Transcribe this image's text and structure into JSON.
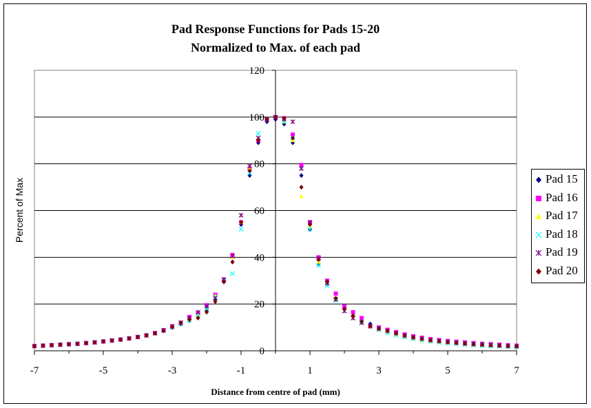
{
  "chart_data": {
    "type": "scatter",
    "title": "Pad Response Functions for Pads 15-20",
    "subtitle": "Normalized to Max. of each pad",
    "xlabel": "Distance from centre of pad (mm)",
    "ylabel": "Percent of Max",
    "xlim": [
      -7,
      7
    ],
    "ylim": [
      0,
      120
    ],
    "xticks": [
      "-7",
      "-5",
      "-3",
      "-1",
      "1",
      "3",
      "5",
      "7"
    ],
    "yticks": [
      "0",
      "20",
      "40",
      "60",
      "80",
      "100",
      "120"
    ],
    "grid": "horizontal",
    "legend_position": "right",
    "x": [
      -7,
      -6.75,
      -6.5,
      -6.25,
      -6,
      -5.75,
      -5.5,
      -5.25,
      -5,
      -4.75,
      -4.5,
      -4.25,
      -4,
      -3.75,
      -3.5,
      -3.25,
      -3,
      -2.75,
      -2.5,
      -2.25,
      -2,
      -1.75,
      -1.5,
      -1.25,
      -1,
      -0.75,
      -0.5,
      -0.25,
      0,
      0.25,
      0.5,
      0.75,
      1,
      1.25,
      1.5,
      1.75,
      2,
      2.25,
      2.5,
      2.75,
      3,
      3.25,
      3.5,
      3.75,
      4,
      4.25,
      4.5,
      4.75,
      5,
      5.25,
      5.5,
      5.75,
      6,
      6.25,
      6.5,
      6.75,
      7
    ],
    "series": [
      {
        "name": "Pad 15",
        "color": "#000080",
        "marker": "diamond",
        "values": [
          2,
          2.2,
          2.4,
          2.6,
          2.8,
          3,
          3.3,
          3.6,
          4,
          4.4,
          4.8,
          5.3,
          5.9,
          6.6,
          7.5,
          8.5,
          10,
          11.5,
          13,
          14.5,
          17,
          22,
          29.5,
          38,
          54,
          75,
          89,
          98,
          99,
          97,
          89,
          75,
          52,
          37,
          28.5,
          22,
          18,
          15,
          13,
          11.5,
          9.8,
          8.5,
          7.4,
          6.6,
          5.8,
          5.2,
          4.6,
          4.2,
          3.8,
          3.5,
          3.2,
          2.9,
          2.7,
          2.5,
          2.3,
          2.1,
          2
        ]
      },
      {
        "name": "Pad 16",
        "color": "#ff00ff",
        "marker": "square",
        "values": [
          2,
          2.2,
          2.4,
          2.6,
          2.8,
          3,
          3.3,
          3.6,
          4,
          4.4,
          4.8,
          5.3,
          5.9,
          6.6,
          7.6,
          8.8,
          10.5,
          12,
          14.5,
          16,
          19.5,
          24,
          30.5,
          41,
          55,
          78,
          90,
          99,
          100,
          99.5,
          92.5,
          79.5,
          55,
          40,
          30,
          24.5,
          19,
          16.5,
          14,
          10.5,
          10,
          9,
          8,
          7,
          6.2,
          5.6,
          5,
          4.6,
          4.2,
          3.9,
          3.6,
          3.3,
          3,
          2.8,
          2.6,
          2.4,
          2.2
        ]
      },
      {
        "name": "Pad 17",
        "color": "#ffff00",
        "marker": "triangle",
        "values": [
          2,
          2.2,
          2.4,
          2.6,
          2.8,
          3,
          3.3,
          3.6,
          4,
          4.4,
          4.8,
          5.3,
          5.9,
          6.6,
          7.5,
          8.7,
          10.2,
          11.8,
          13.5,
          15.5,
          18.5,
          23.5,
          30,
          40,
          55,
          78,
          91,
          99,
          100,
          98,
          90,
          66,
          53,
          38,
          29,
          22,
          18,
          14.5,
          12.5,
          10.5,
          9,
          8,
          7,
          6,
          5.2,
          4.6,
          4,
          3.6,
          3.2,
          2.9,
          2.6,
          2.4,
          2.2,
          2,
          1.9,
          1.7,
          1.6
        ]
      },
      {
        "name": "Pad 18",
        "color": "#00ffff",
        "marker": "x",
        "values": [
          2,
          2.2,
          2.4,
          2.6,
          2.8,
          3,
          3.3,
          3.6,
          4,
          4.4,
          4.8,
          5.3,
          5.9,
          6.6,
          7.5,
          8.7,
          10.2,
          11.5,
          13,
          15,
          18,
          23,
          30,
          33,
          52,
          76,
          93,
          99,
          100,
          98,
          91,
          78,
          52,
          36.5,
          28,
          21.5,
          17,
          14,
          12.5,
          10.5,
          9,
          7.6,
          6.6,
          5.8,
          5,
          4.5,
          4,
          3.6,
          3.2,
          2.9,
          2.6,
          2.4,
          2.2,
          2,
          1.9,
          1.7,
          1.6
        ]
      },
      {
        "name": "Pad 19",
        "color": "#800080",
        "marker": "star",
        "values": [
          2,
          2.2,
          2.4,
          2.6,
          2.8,
          3,
          3.3,
          3.6,
          4,
          4.4,
          4.8,
          5.3,
          5.9,
          6.6,
          7.5,
          8.8,
          10.4,
          12,
          14,
          16.5,
          19,
          22.5,
          30.5,
          40.5,
          58,
          79,
          91,
          99,
          100,
          99,
          98,
          78,
          55,
          39.5,
          29,
          22,
          17,
          14,
          12,
          10.5,
          9.5,
          8.5,
          7.5,
          6.5,
          5.8,
          5.2,
          4.6,
          4.2,
          3.8,
          3.5,
          3.2,
          2.9,
          2.7,
          2.5,
          2.3,
          2.1,
          2
        ]
      },
      {
        "name": "Pad 20",
        "color": "#800000",
        "marker": "diamond",
        "values": [
          2,
          2.2,
          2.4,
          2.6,
          2.8,
          3,
          3.3,
          3.6,
          4,
          4.4,
          4.8,
          5.3,
          5.9,
          6.6,
          7.5,
          8.6,
          10.3,
          12,
          13.5,
          14,
          16.5,
          21,
          29.5,
          38,
          55,
          77,
          90,
          99,
          100,
          99.5,
          91,
          70,
          54,
          39,
          29.5,
          22.5,
          18,
          15,
          12.5,
          10.5,
          9.5,
          8.5,
          7.5,
          6.5,
          5.7,
          5.1,
          4.5,
          4.1,
          3.7,
          3.4,
          3.1,
          2.8,
          2.6,
          2.4,
          2.2,
          2,
          1.9
        ]
      }
    ]
  }
}
